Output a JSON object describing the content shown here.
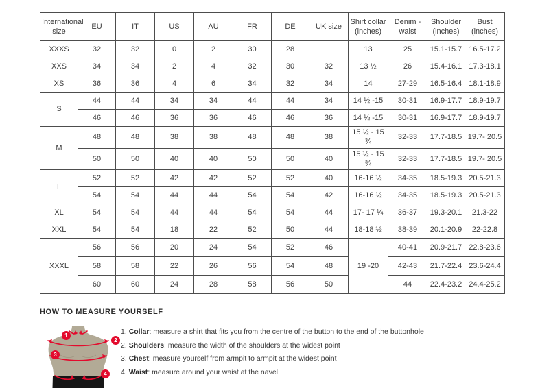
{
  "colors": {
    "accent-red": "#e30b2d",
    "figure-tan": "#b2aa96",
    "shorts-black": "#161616",
    "border-col": "#4d4d4d",
    "text-col": "#3d3d3d"
  },
  "table": {
    "headers": [
      "International size",
      "EU",
      "IT",
      "US",
      "AU",
      "FR",
      "DE",
      "UK size",
      "Shirt collar (inches)",
      "Denim - waist",
      "Shoulder (inches)",
      "Bust (inches)"
    ],
    "groups": [
      {
        "size": "XXXS",
        "rows": [
          [
            "32",
            "32",
            "0",
            "2",
            "30",
            "28",
            "",
            "13",
            "25",
            "15.1-15.7",
            "16.5-17.2"
          ]
        ]
      },
      {
        "size": "XXS",
        "rows": [
          [
            "34",
            "34",
            "2",
            "4",
            "32",
            "30",
            "32",
            "13 ½",
            "26",
            "15.4-16.1",
            "17.3-18.1"
          ]
        ]
      },
      {
        "size": "XS",
        "rows": [
          [
            "36",
            "36",
            "4",
            "6",
            "34",
            "32",
            "34",
            "14",
            "27-29",
            "16.5-16.4",
            "18.1-18.9"
          ]
        ]
      },
      {
        "size": "S",
        "rows": [
          [
            "44",
            "44",
            "34",
            "34",
            "44",
            "44",
            "34",
            "14 ½ -15",
            "30-31",
            "16.9-17.7",
            "18.9-19.7"
          ],
          [
            "46",
            "46",
            "36",
            "36",
            "46",
            "46",
            "36",
            "14 ½ -15",
            "30-31",
            "16.9-17.7",
            "18.9-19.7"
          ]
        ]
      },
      {
        "size": "M",
        "rows": [
          [
            "48",
            "48",
            "38",
            "38",
            "48",
            "48",
            "38",
            "15 ½ - 15 ¾",
            "32-33",
            "17.7-18.5",
            "19.7- 20.5"
          ],
          [
            "50",
            "50",
            "40",
            "40",
            "50",
            "50",
            "40",
            "15 ½ - 15 ¾",
            "32-33",
            "17.7-18.5",
            "19.7- 20.5"
          ]
        ]
      },
      {
        "size": "L",
        "rows": [
          [
            "52",
            "52",
            "42",
            "42",
            "52",
            "52",
            "40",
            "16-16 ½",
            "34-35",
            "18.5-19.3",
            "20.5-21.3"
          ],
          [
            "54",
            "54",
            "44",
            "44",
            "54",
            "54",
            "42",
            "16-16 ½",
            "34-35",
            "18.5-19.3",
            "20.5-21.3"
          ]
        ]
      },
      {
        "size": "XL",
        "rows": [
          [
            "54",
            "54",
            "44",
            "44",
            "54",
            "54",
            "44",
            "17- 17 ¼",
            "36-37",
            "19.3-20.1",
            "21.3-22"
          ]
        ]
      },
      {
        "size": "XXL",
        "rows": [
          [
            "54",
            "54",
            "18",
            "22",
            "52",
            "50",
            "44",
            "18-18 ½",
            "38-39",
            "20.1-20.9",
            "22-22.8"
          ]
        ]
      },
      {
        "size": "XXXL",
        "collar": "19 -20",
        "rows": [
          [
            "56",
            "56",
            "20",
            "24",
            "54",
            "52",
            "46",
            "40-41",
            "20.9-21.7",
            "22.8-23.6"
          ],
          [
            "58",
            "58",
            "22",
            "26",
            "56",
            "54",
            "48",
            "42-43",
            "21.7-22.4",
            "23.6-24.4"
          ],
          [
            "60",
            "60",
            "24",
            "28",
            "58",
            "56",
            "50",
            "44",
            "22.4-23.2",
            "24.4-25.2"
          ]
        ]
      }
    ]
  },
  "measure": {
    "heading": "HOW TO MEASURE YOURSELF",
    "badges": [
      "1",
      "2",
      "3",
      "4"
    ],
    "steps": [
      {
        "num": "1",
        "label": "Collar",
        "text": ": measure a shirt that fits you from the centre of the button to the end of the buttonhole"
      },
      {
        "num": "2",
        "label": "Shoulders",
        "text": ": measure the width of the shoulders at the widest point"
      },
      {
        "num": "3",
        "label": "Chest",
        "text": ": measure yourself from armpit to armpit at the widest point"
      },
      {
        "num": "4",
        "label": "Waist",
        "text": ": measure around your waist at the navel"
      }
    ]
  }
}
